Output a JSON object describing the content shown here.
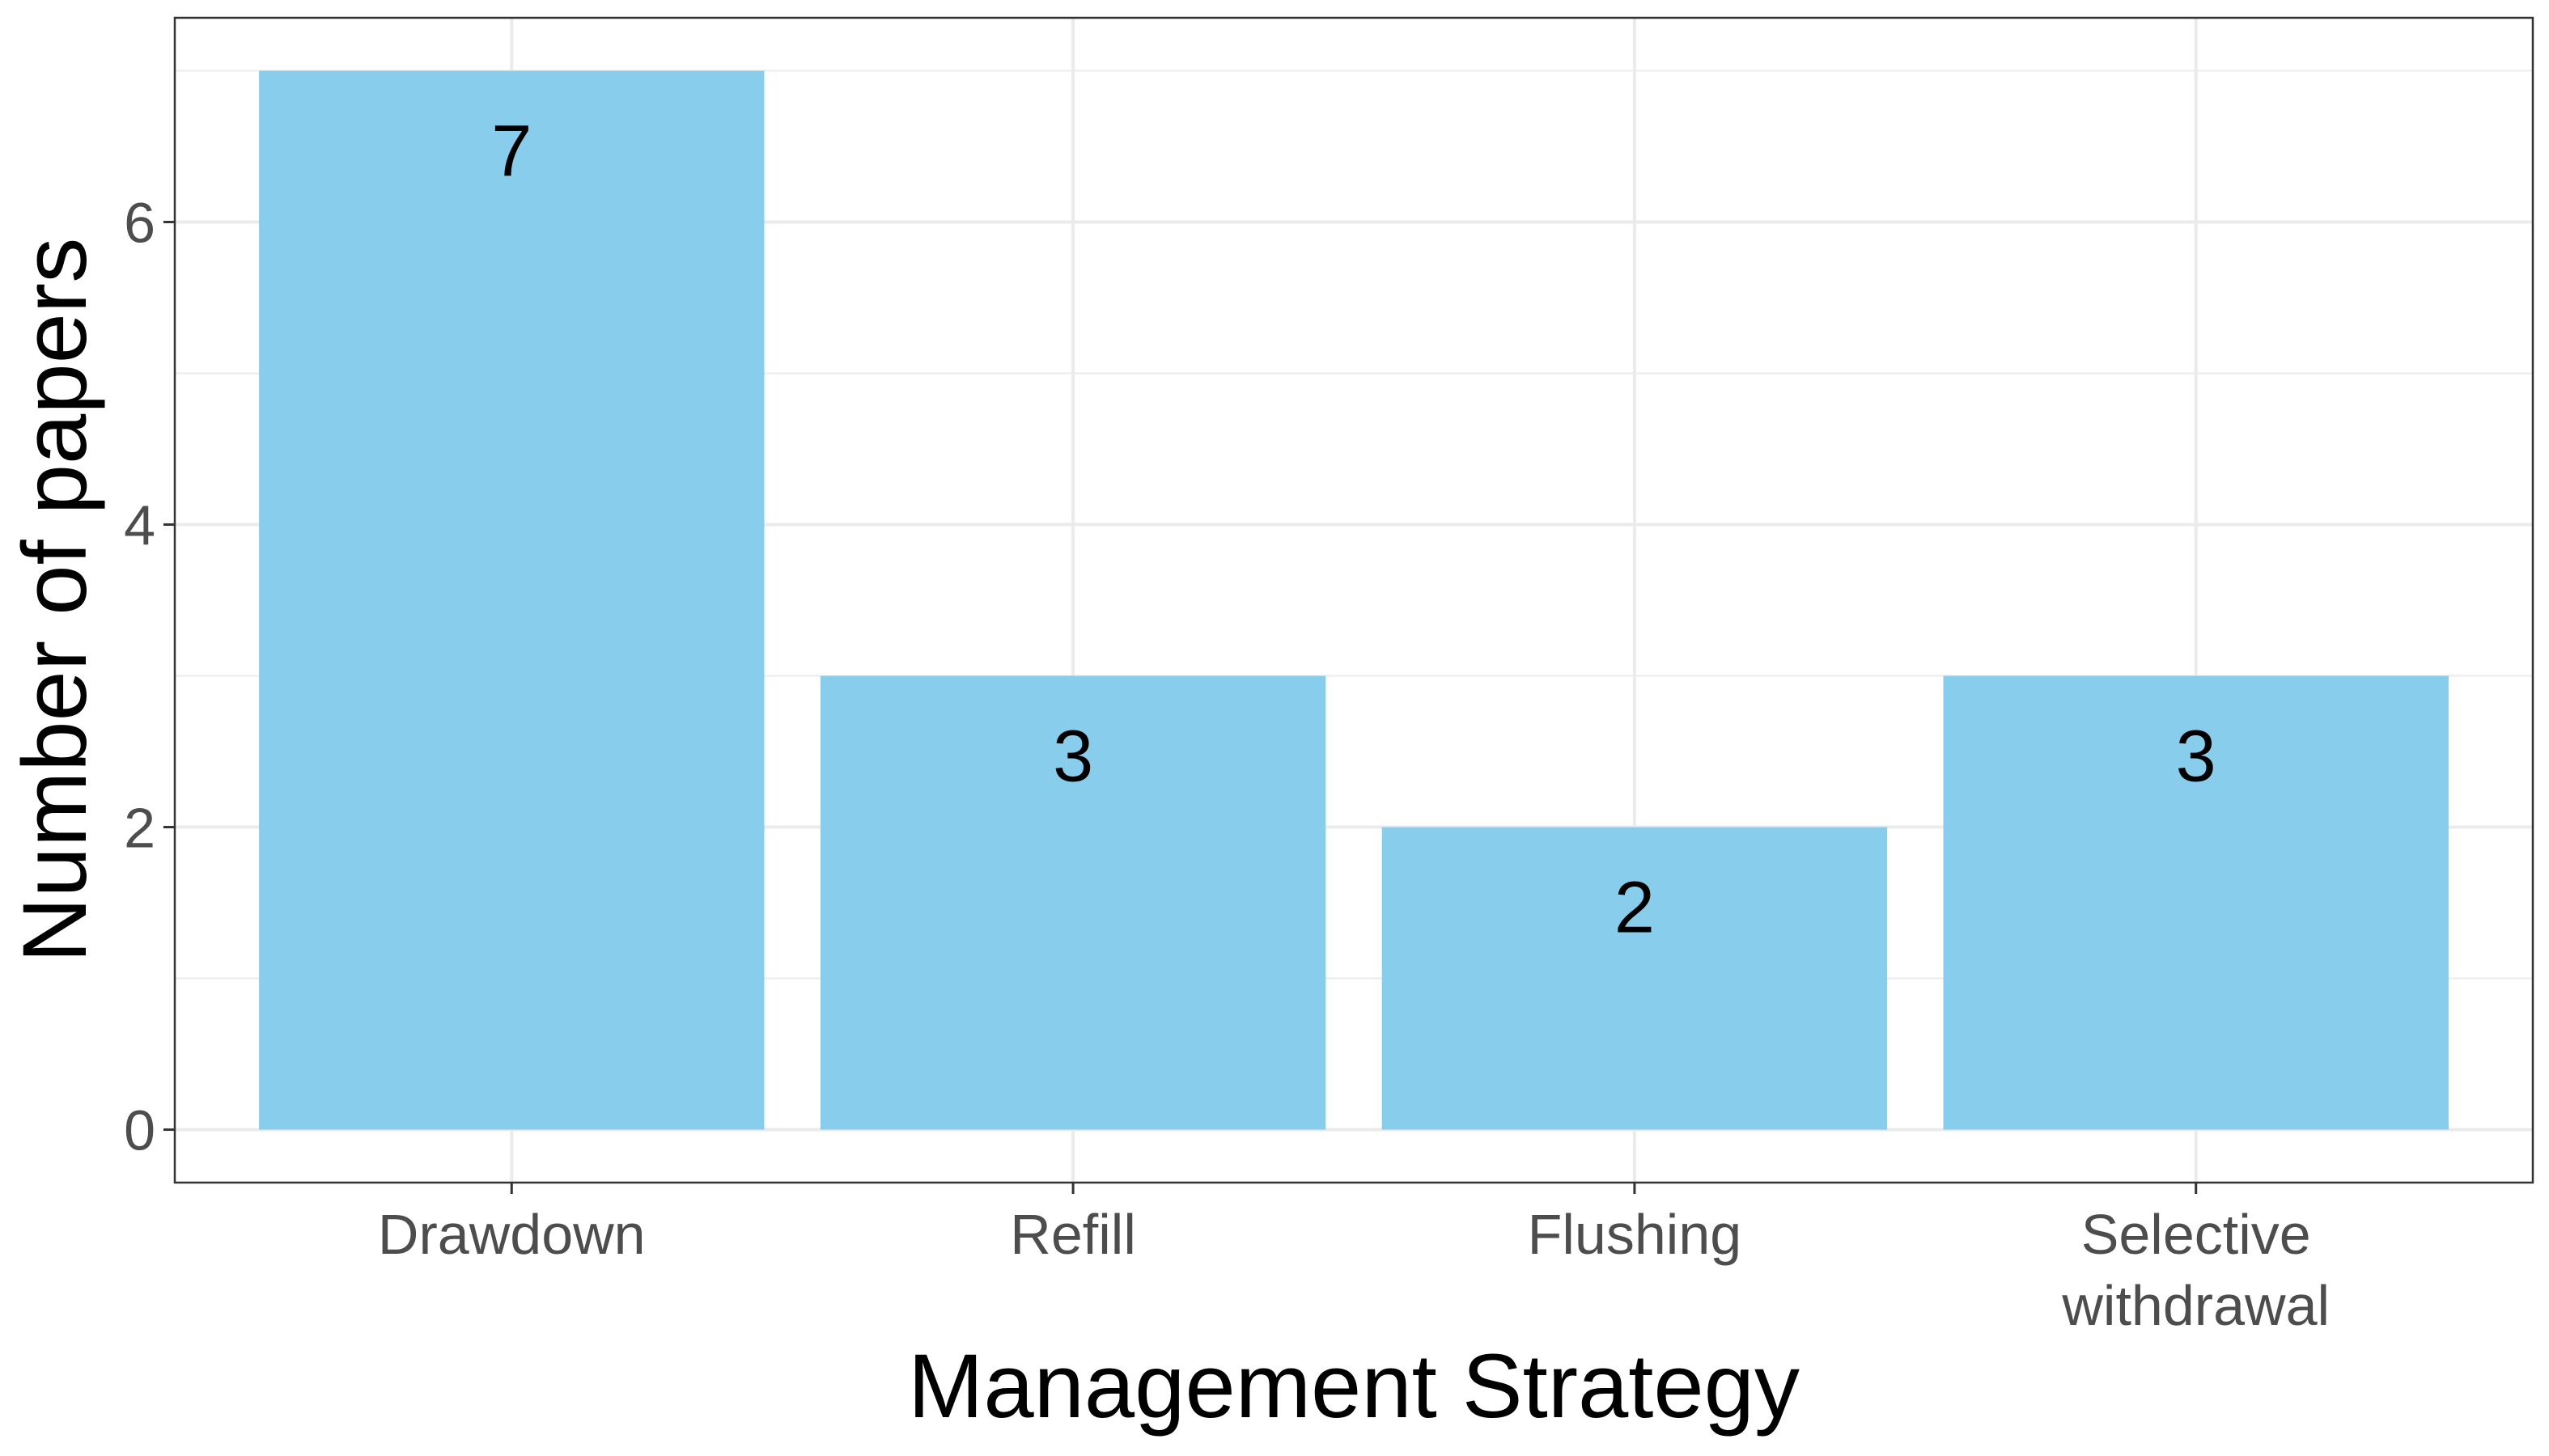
{
  "chart_data": {
    "type": "bar",
    "categories": [
      [
        "Drawdown"
      ],
      [
        "Refill"
      ],
      [
        "Flushing"
      ],
      [
        "Selective",
        "withdrawal"
      ]
    ],
    "values": [
      7,
      3,
      2,
      3
    ],
    "data_labels": [
      "7",
      "3",
      "2",
      "3"
    ],
    "xlabel": "Management Strategy",
    "ylabel": "Number of papers",
    "ylim": [
      -0.35,
      7.35
    ],
    "yticks": [
      0,
      2,
      4,
      6
    ],
    "ytick_labels": [
      "0",
      "2",
      "4",
      "6"
    ],
    "grid": true,
    "legend": "none",
    "bar_color": "#89CDED",
    "grid_color": "#EBEBEB",
    "panel_border_color": "#333333"
  }
}
